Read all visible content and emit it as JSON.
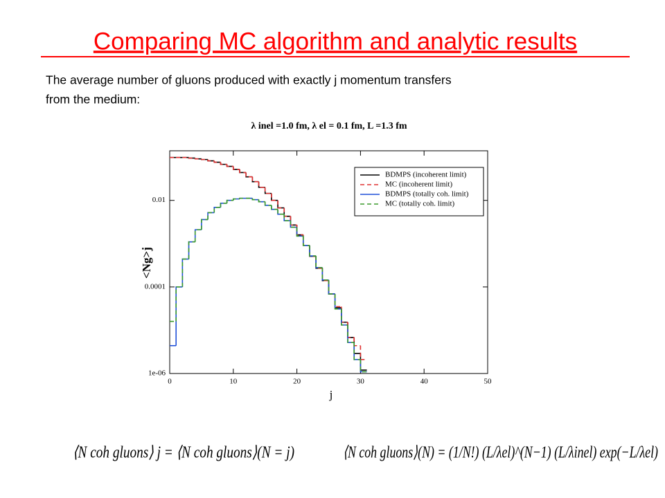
{
  "title": "Comparing MC algorithm and analytic results",
  "text_lines": [
    "The average number of gluons produced with exactly j momentum transfers",
    "from the medium:"
  ],
  "equations": [
    "⟨N coh gluons⟩ j = ⟨N coh gluons⟩(N = j)",
    "⟨N coh gluons⟩(N) = (1/N!) (L/λel)^(N−1) (L/λinel) exp(−L/λel)"
  ],
  "chart_data": {
    "type": "histogram",
    "title": "λ inel =1.0 fm,   λ el = 0.1 fm,   L =1.3 fm",
    "x_label": "j",
    "y_label": "<Ng>j",
    "bins": [
      0,
      1,
      2,
      3,
      4,
      5,
      6,
      7,
      8,
      9,
      10,
      11,
      12,
      13,
      14,
      15,
      16,
      17,
      18,
      19,
      20,
      21,
      22,
      23,
      24,
      25,
      26,
      27,
      28,
      29,
      30,
      31
    ],
    "series": [
      {
        "name": "BDMPS (incoherent limit)",
        "color": "#000000",
        "dashed": false,
        "values": [
          0.098,
          0.098,
          0.098,
          0.095,
          0.091,
          0.088,
          0.082,
          0.076,
          0.068,
          0.061,
          0.052,
          0.044,
          0.035,
          0.027,
          0.02,
          0.0145,
          0.01,
          0.0067,
          0.0043,
          0.0027,
          0.0016,
          0.00091,
          0.00051,
          0.00027,
          0.00014,
          6.9e-05,
          3.3e-05,
          1.53e-05,
          6.8e-06,
          2.9e-06,
          1.2e-06
        ]
      },
      {
        "name": "MC (incoherent limit)",
        "color": "#e03030",
        "dashed": true,
        "values": [
          0.098,
          0.098,
          0.098,
          0.095,
          0.091,
          0.088,
          0.082,
          0.076,
          0.068,
          0.061,
          0.052,
          0.044,
          0.035,
          0.027,
          0.02,
          0.0145,
          0.01,
          0.0067,
          0.0043,
          0.0027,
          0.0016,
          0.00091,
          0.00051,
          0.00027,
          0.00014,
          6.9e-05,
          3.5e-05,
          1.53e-05,
          6.8e-06,
          4.4e-06,
          2.1e-06
        ]
      },
      {
        "name": "BDMPS (totally coh. limit)",
        "color": "#1f4fd8",
        "dashed": false,
        "values": [
          4.4e-06,
          0.0001,
          0.00044,
          0.0011,
          0.0021,
          0.0036,
          0.0052,
          0.0069,
          0.0086,
          0.01,
          0.0108,
          0.0112,
          0.0112,
          0.0104,
          0.0093,
          0.0077,
          0.0062,
          0.0048,
          0.0034,
          0.0024,
          0.0015,
          0.00091,
          0.00052,
          0.00028,
          0.000145,
          6.9e-05,
          3.1e-05,
          1.32e-05,
          5.2e-06,
          2.1e-06,
          1.1e-06
        ]
      },
      {
        "name": "MC (totally coh. limit)",
        "color": "#3a9a2a",
        "dashed": true,
        "values": [
          1.6e-05,
          0.0001,
          0.00044,
          0.0011,
          0.0021,
          0.0036,
          0.0052,
          0.0069,
          0.0086,
          0.01,
          0.0108,
          0.0112,
          0.0112,
          0.0104,
          0.0093,
          0.0077,
          0.0062,
          0.0048,
          0.0034,
          0.0024,
          0.0015,
          0.00091,
          0.00052,
          0.00028,
          0.000145,
          6.9e-05,
          3.1e-05,
          1.32e-05,
          5.2e-06,
          2.1e-06,
          1.1e-06
        ]
      }
    ],
    "xlim": [
      0,
      50
    ],
    "xticks": [
      0,
      10,
      20,
      30,
      40,
      50
    ],
    "ylim": [
      1e-06,
      0.14
    ],
    "log_y": true,
    "yticks": [
      {
        "value": 1e-06,
        "label": "1e-06"
      },
      {
        "value": 0.0001,
        "label": "0.0001"
      },
      0.01
    ],
    "legend": "upper right"
  }
}
